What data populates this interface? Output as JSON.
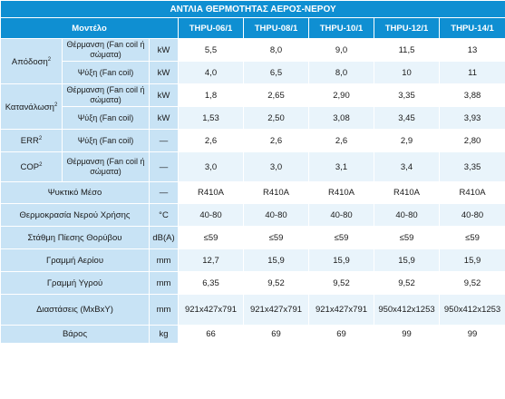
{
  "title": "ΑΝΤΛΙΑ ΘΕΡΜΟΤΗΤΑΣ ΑΕΡΟΣ-ΝΕΡΟΥ",
  "header": {
    "model_label": "Μοντέλο",
    "models": [
      "THPU-06/1",
      "THPU-08/1",
      "THPU-10/1",
      "THPU-12/1",
      "THPU-14/1"
    ]
  },
  "rows": {
    "apodosi": {
      "label": "Απόδοση",
      "sup": "2",
      "heating": {
        "mode": "Θέρμανση (Fan coil ή σώματα)",
        "unit": "kW",
        "values": [
          "5,5",
          "8,0",
          "9,0",
          "11,5",
          "13"
        ]
      },
      "cooling": {
        "mode": "Ψύξη (Fan coil)",
        "unit": "kW",
        "values": [
          "4,0",
          "6,5",
          "8,0",
          "10",
          "11"
        ]
      }
    },
    "katanalosi": {
      "label": "Κατανάλωση",
      "sup": "2",
      "heating": {
        "mode": "Θέρμανση (Fan coil ή σώματα)",
        "unit": "kW",
        "values": [
          "1,8",
          "2,65",
          "2,90",
          "3,35",
          "3,88"
        ]
      },
      "cooling": {
        "mode": "Ψύξη (Fan coil)",
        "unit": "kW",
        "values": [
          "1,53",
          "2,50",
          "3,08",
          "3,45",
          "3,93"
        ]
      }
    },
    "err": {
      "label": "ERR",
      "sup": "2",
      "mode": "Ψύξη (Fan coil)",
      "unit": "—",
      "values": [
        "2,6",
        "2,6",
        "2,6",
        "2,9",
        "2,80"
      ]
    },
    "cop": {
      "label": "COP",
      "sup": "2",
      "mode": "Θέρμανση (Fan coil ή σώματα)",
      "unit": "—",
      "values": [
        "3,0",
        "3,0",
        "3,1",
        "3,4",
        "3,35"
      ]
    },
    "refrigerant": {
      "label": "Ψυκτικό Μέσο",
      "unit": "—",
      "values": [
        "R410A",
        "R410A",
        "R410A",
        "R410A",
        "R410A"
      ]
    },
    "water_temp": {
      "label": "Θερμοκρασία Νερού Χρήσης",
      "unit": "°C",
      "values": [
        "40-80",
        "40-80",
        "40-80",
        "40-80",
        "40-80"
      ]
    },
    "noise": {
      "label": "Στάθμη Πίεσης Θορύβου",
      "unit": "dB(A)",
      "values": [
        "≤59",
        "≤59",
        "≤59",
        "≤59",
        "≤59"
      ]
    },
    "gas_line": {
      "label": "Γραμμή Αερίου",
      "unit": "mm",
      "values": [
        "12,7",
        "15,9",
        "15,9",
        "15,9",
        "15,9"
      ]
    },
    "liquid_line": {
      "label": "Γραμμή Υγρού",
      "unit": "mm",
      "values": [
        "6,35",
        "9,52",
        "9,52",
        "9,52",
        "9,52"
      ]
    },
    "dimensions": {
      "label": "Διαστάσεις (ΜxΒxΥ)",
      "unit": "mm",
      "values": [
        "921x427x791",
        "921x427x791",
        "921x427x791",
        "950x412x1253",
        "950x412x1253"
      ]
    },
    "weight": {
      "label": "Βάρος",
      "unit": "kg",
      "values": [
        "66",
        "69",
        "69",
        "99",
        "99"
      ]
    }
  }
}
